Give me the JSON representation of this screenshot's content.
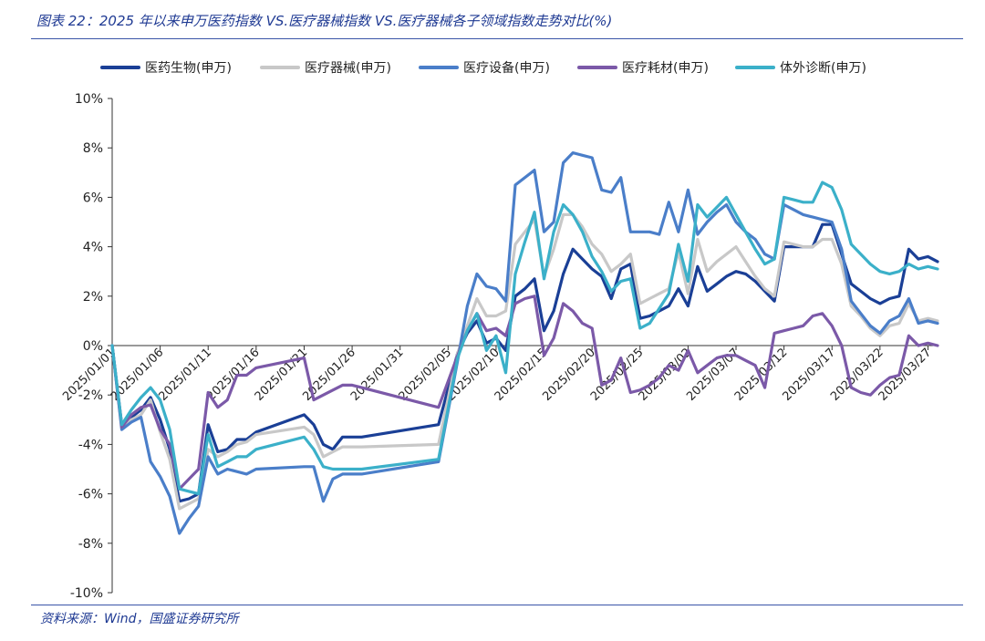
{
  "header": {
    "title": "图表 22：2025 年以来申万医药指数 VS.医疗器械指数 VS.医疗器械各子领域指数走势对比(%)"
  },
  "footer": {
    "source": "资料来源：Wind，国盛证券研究所"
  },
  "chart_data": {
    "type": "line",
    "ylim": [
      -10,
      10
    ],
    "y_ticks": [
      10,
      8,
      6,
      4,
      2,
      0,
      -2,
      -4,
      -6,
      -8,
      -10
    ],
    "y_tick_labels": [
      "10%",
      "8%",
      "6%",
      "4%",
      "2%",
      "0%",
      "-2%",
      "-4%",
      "-6%",
      "-8%",
      "-10%"
    ],
    "grid": false,
    "legend_position": "top",
    "x_tick_labels": [
      "2025/01/01",
      "2025/01/06",
      "2025/01/11",
      "2025/01/16",
      "2025/01/21",
      "2025/01/26",
      "2025/01/31",
      "2025/02/05",
      "2025/02/10",
      "2025/02/15",
      "2025/02/20",
      "2025/02/25",
      "2025/03/02",
      "2025/03/07",
      "2025/03/12",
      "2025/03/17",
      "2025/03/22",
      "2025/03/27"
    ],
    "x_tick_days": [
      0,
      5,
      10,
      15,
      20,
      25,
      30,
      35,
      40,
      45,
      50,
      55,
      60,
      65,
      70,
      75,
      80,
      85
    ],
    "x": [
      0,
      1,
      2,
      3,
      4,
      5,
      6,
      7,
      8,
      9,
      10,
      11,
      12,
      13,
      14,
      15,
      20,
      21,
      22,
      23,
      24,
      25,
      26,
      34,
      36,
      37,
      38,
      39,
      40,
      41,
      42,
      43,
      44,
      45,
      46,
      47,
      48,
      49,
      50,
      51,
      52,
      53,
      54,
      55,
      56,
      57,
      58,
      59,
      60,
      61,
      62,
      63,
      64,
      65,
      66,
      67,
      68,
      69,
      70,
      71,
      72,
      73,
      74,
      75,
      76,
      77,
      78,
      79,
      80,
      81,
      82,
      83,
      84,
      85,
      86
    ],
    "series": [
      {
        "name": "医药生物(申万)",
        "color": "#1a3f96",
        "values": [
          0,
          -3.2,
          -2.9,
          -2.6,
          -2.1,
          -3.0,
          -4.2,
          -6.3,
          -6.2,
          -6.0,
          -3.2,
          -4.3,
          -4.2,
          -3.8,
          -3.8,
          -3.5,
          -2.8,
          -3.2,
          -4.0,
          -4.2,
          -3.7,
          -3.7,
          -3.7,
          -3.2,
          -0.3,
          0.5,
          1.0,
          0.1,
          0.3,
          -0.2,
          2.0,
          2.3,
          2.7,
          0.6,
          1.4,
          2.9,
          3.9,
          3.5,
          3.1,
          2.8,
          1.9,
          3.1,
          3.3,
          1.1,
          1.2,
          1.4,
          1.6,
          2.3,
          1.6,
          3.2,
          2.2,
          2.5,
          2.8,
          3.0,
          2.9,
          2.6,
          2.2,
          1.8,
          4.0,
          4.0,
          4.0,
          4.0,
          4.9,
          4.9,
          3.7,
          2.5,
          2.2,
          1.9,
          1.7,
          1.9,
          2.0,
          3.9,
          3.5,
          3.6,
          3.4
        ]
      },
      {
        "name": "医疗器械(申万)",
        "color": "#c8c8c8",
        "values": [
          0,
          -3.3,
          -3.0,
          -2.8,
          -2.2,
          -3.5,
          -4.6,
          -6.6,
          -6.4,
          -6.2,
          -4.2,
          -4.5,
          -4.3,
          -4.0,
          -3.9,
          -3.6,
          -3.3,
          -3.6,
          -4.5,
          -4.3,
          -4.1,
          -4.1,
          -4.1,
          -4.0,
          -0.3,
          0.8,
          1.9,
          1.2,
          1.2,
          1.4,
          4.1,
          4.6,
          5.1,
          2.8,
          3.9,
          5.3,
          5.3,
          4.8,
          4.1,
          3.7,
          3.0,
          3.3,
          3.7,
          1.7,
          1.9,
          2.1,
          2.3,
          3.8,
          2.1,
          4.3,
          3.0,
          3.4,
          3.7,
          4.0,
          3.4,
          2.8,
          2.3,
          2.0,
          4.2,
          4.1,
          4.0,
          4.0,
          4.3,
          4.3,
          3.3,
          1.6,
          1.2,
          0.7,
          0.4,
          0.8,
          0.9,
          1.7,
          1.0,
          1.1,
          1.0
        ]
      },
      {
        "name": "医疗设备(申万)",
        "color": "#4a7ec9",
        "values": [
          0,
          -3.4,
          -3.1,
          -2.9,
          -4.7,
          -5.3,
          -6.1,
          -7.6,
          -7.0,
          -6.5,
          -4.5,
          -5.2,
          -5.0,
          -5.1,
          -5.2,
          -5.0,
          -4.9,
          -4.9,
          -6.3,
          -5.4,
          -5.2,
          -5.2,
          -5.2,
          -4.7,
          -0.6,
          1.6,
          2.9,
          2.4,
          2.3,
          1.8,
          6.5,
          6.8,
          7.1,
          4.6,
          5.0,
          7.4,
          7.8,
          7.7,
          7.6,
          6.3,
          6.2,
          6.8,
          4.6,
          4.6,
          4.6,
          4.5,
          5.8,
          4.6,
          6.3,
          4.5,
          5.0,
          5.4,
          5.7,
          5.0,
          4.6,
          4.3,
          3.7,
          3.5,
          5.7,
          5.5,
          5.3,
          5.2,
          5.1,
          5.0,
          3.9,
          1.8,
          1.3,
          0.8,
          0.5,
          1.0,
          1.2,
          1.9,
          0.9,
          1.0,
          0.9
        ]
      },
      {
        "name": "医疗耗材(申万)",
        "color": "#7b59a8",
        "values": [
          0,
          -3.3,
          -2.8,
          -2.5,
          -2.4,
          -3.4,
          -4.0,
          -5.8,
          -5.4,
          -5.0,
          -1.9,
          -2.5,
          -2.2,
          -1.2,
          -1.2,
          -0.9,
          -0.5,
          -2.2,
          -2.0,
          -1.8,
          -1.6,
          -1.6,
          -1.7,
          -2.5,
          -0.4,
          0.6,
          1.3,
          0.6,
          0.7,
          0.4,
          1.7,
          1.9,
          2.0,
          -0.4,
          0.3,
          1.7,
          1.4,
          0.9,
          0.7,
          -1.6,
          -1.4,
          -0.5,
          -1.9,
          -1.8,
          -1.6,
          -1.3,
          -0.8,
          -1.0,
          -0.2,
          -1.1,
          -0.8,
          -0.5,
          -0.4,
          -0.4,
          -0.6,
          -0.8,
          -1.7,
          0.5,
          0.6,
          0.7,
          0.8,
          1.2,
          1.3,
          0.8,
          0.0,
          -1.7,
          -1.9,
          -2.0,
          -1.6,
          -1.3,
          -1.2,
          0.4,
          0.0,
          0.1,
          0.0
        ]
      },
      {
        "name": "体外诊断(申万)",
        "color": "#3bb0c9",
        "values": [
          0,
          -3.2,
          -2.6,
          -2.1,
          -1.7,
          -2.2,
          -3.4,
          -5.8,
          -5.9,
          -6.0,
          -3.6,
          -4.9,
          -4.7,
          -4.5,
          -4.5,
          -4.2,
          -3.7,
          -4.2,
          -4.9,
          -5.0,
          -5.0,
          -5.0,
          -5.0,
          -4.6,
          -0.5,
          0.6,
          1.3,
          -0.2,
          0.4,
          -1.1,
          2.9,
          4.2,
          5.4,
          2.7,
          4.6,
          5.7,
          5.3,
          4.6,
          3.6,
          3.0,
          2.2,
          2.6,
          2.7,
          0.7,
          0.9,
          1.5,
          2.1,
          4.1,
          2.6,
          5.7,
          5.2,
          5.6,
          6.0,
          5.3,
          4.6,
          3.9,
          3.3,
          3.5,
          6.0,
          5.9,
          5.8,
          5.8,
          6.6,
          6.4,
          5.5,
          4.1,
          3.7,
          3.3,
          3.0,
          2.9,
          3.0,
          3.3,
          3.1,
          3.2,
          3.1
        ]
      }
    ]
  }
}
